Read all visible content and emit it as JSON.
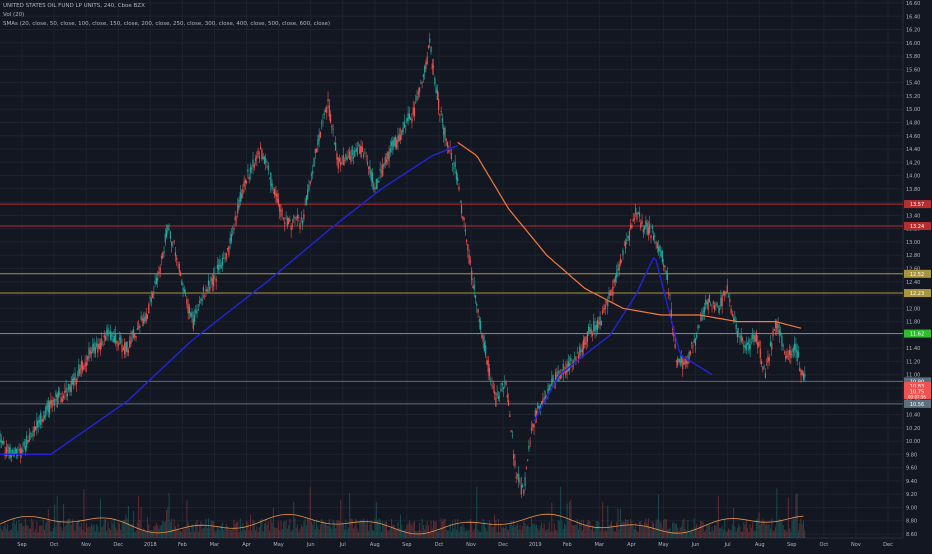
{
  "legend": {
    "title_line": "UNITED STATES OIL FUND LP UNITS, 240, Cboe BZX",
    "volume_line": "Vol (20)",
    "sma_line": "SMAs (20, close, 50, close, 100, close, 150, close, 200, close, 250, close, 300, close, 400, close, 500, close, 600, close)"
  },
  "colors": {
    "background": "#131722",
    "grid": "#1e222d",
    "candle_up": "#26a69a",
    "candle_down": "#ef5350",
    "sma_blue": "#2424d6",
    "sma_orange": "#f57c3a",
    "volume_ma": "#e8954d",
    "line_red": "#b72d2d",
    "line_yellow": "#a8953c",
    "line_green": "#2fbd2f",
    "line_grey": "#5c7080"
  },
  "chart_data": {
    "type": "candlestick",
    "title": "UNITED STATES OIL FUND LP UNITS, 240, Cboe BZX",
    "y_ticks": [
      "16.60",
      "16.40",
      "16.20",
      "16.00",
      "15.80",
      "15.60",
      "15.40",
      "15.20",
      "15.00",
      "14.80",
      "14.60",
      "14.40",
      "14.20",
      "14.00",
      "13.80",
      "13.60",
      "13.40",
      "13.20",
      "13.00",
      "12.80",
      "12.60",
      "12.40",
      "12.20",
      "12.00",
      "11.80",
      "11.60",
      "11.40",
      "11.20",
      "11.00",
      "10.80",
      "10.60",
      "10.40",
      "10.20",
      "10.00",
      "9.80",
      "9.60",
      "9.40",
      "9.20",
      "9.00",
      "8.80",
      "8.60"
    ],
    "ylim": [
      8.6,
      16.6
    ],
    "x_ticks": [
      "Sep",
      "Oct",
      "Nov",
      "Dec",
      "2018",
      "Feb",
      "Mar",
      "Apr",
      "May",
      "Jun",
      "Jul",
      "Aug",
      "Sep",
      "Oct",
      "Nov",
      "Dec",
      "2019",
      "Feb",
      "Mar",
      "Apr",
      "May",
      "Jun",
      "Jul",
      "Aug",
      "Sep",
      "Oct",
      "Nov",
      "Dec"
    ],
    "price_anchors": [
      {
        "d": 0,
        "p": 10.0
      },
      {
        "d": 10,
        "p": 9.75
      },
      {
        "d": 18,
        "p": 9.85
      },
      {
        "d": 25,
        "p": 10.1
      },
      {
        "d": 40,
        "p": 10.55
      },
      {
        "d": 55,
        "p": 10.8
      },
      {
        "d": 70,
        "p": 11.3
      },
      {
        "d": 85,
        "p": 11.6
      },
      {
        "d": 100,
        "p": 11.4
      },
      {
        "d": 115,
        "p": 11.9
      },
      {
        "d": 125,
        "p": 12.5
      },
      {
        "d": 132,
        "p": 13.2
      },
      {
        "d": 138,
        "p": 12.9
      },
      {
        "d": 145,
        "p": 12.2
      },
      {
        "d": 152,
        "p": 11.8
      },
      {
        "d": 160,
        "p": 12.2
      },
      {
        "d": 170,
        "p": 12.5
      },
      {
        "d": 180,
        "p": 12.9
      },
      {
        "d": 192,
        "p": 13.9
      },
      {
        "d": 205,
        "p": 14.4
      },
      {
        "d": 215,
        "p": 13.8
      },
      {
        "d": 225,
        "p": 13.3
      },
      {
        "d": 238,
        "p": 13.3
      },
      {
        "d": 250,
        "p": 14.5
      },
      {
        "d": 258,
        "p": 15.1
      },
      {
        "d": 266,
        "p": 14.2
      },
      {
        "d": 275,
        "p": 14.3
      },
      {
        "d": 285,
        "p": 14.4
      },
      {
        "d": 295,
        "p": 13.8
      },
      {
        "d": 305,
        "p": 14.3
      },
      {
        "d": 318,
        "p": 14.7
      },
      {
        "d": 326,
        "p": 15.0
      },
      {
        "d": 334,
        "p": 15.6
      },
      {
        "d": 338,
        "p": 16.0
      },
      {
        "d": 343,
        "p": 15.3
      },
      {
        "d": 350,
        "p": 14.6
      },
      {
        "d": 358,
        "p": 14.1
      },
      {
        "d": 365,
        "p": 13.3
      },
      {
        "d": 372,
        "p": 12.4
      },
      {
        "d": 380,
        "p": 11.5
      },
      {
        "d": 390,
        "p": 10.6
      },
      {
        "d": 398,
        "p": 10.9
      },
      {
        "d": 406,
        "p": 9.5
      },
      {
        "d": 412,
        "p": 9.2
      },
      {
        "d": 418,
        "p": 10.2
      },
      {
        "d": 428,
        "p": 10.7
      },
      {
        "d": 440,
        "p": 11.0
      },
      {
        "d": 452,
        "p": 11.2
      },
      {
        "d": 462,
        "p": 11.6
      },
      {
        "d": 472,
        "p": 11.8
      },
      {
        "d": 482,
        "p": 12.3
      },
      {
        "d": 492,
        "p": 13.0
      },
      {
        "d": 500,
        "p": 13.4
      },
      {
        "d": 508,
        "p": 13.2
      },
      {
        "d": 515,
        "p": 13.1
      },
      {
        "d": 525,
        "p": 12.5
      },
      {
        "d": 532,
        "p": 11.2
      },
      {
        "d": 540,
        "p": 11.2
      },
      {
        "d": 548,
        "p": 11.6
      },
      {
        "d": 556,
        "p": 12.1
      },
      {
        "d": 565,
        "p": 12.0
      },
      {
        "d": 572,
        "p": 12.3
      },
      {
        "d": 580,
        "p": 11.6
      },
      {
        "d": 588,
        "p": 11.4
      },
      {
        "d": 595,
        "p": 11.6
      },
      {
        "d": 602,
        "p": 11.0
      },
      {
        "d": 610,
        "p": 11.8
      },
      {
        "d": 618,
        "p": 11.3
      },
      {
        "d": 625,
        "p": 11.4
      },
      {
        "d": 633,
        "p": 10.9
      }
    ],
    "sma_blue": [
      {
        "d": 0,
        "p": 9.8
      },
      {
        "d": 40,
        "p": 9.8
      },
      {
        "d": 100,
        "p": 10.6
      },
      {
        "d": 150,
        "p": 11.5
      },
      {
        "d": 210,
        "p": 12.4
      },
      {
        "d": 260,
        "p": 13.2
      },
      {
        "d": 300,
        "p": 13.8
      },
      {
        "d": 340,
        "p": 14.3
      },
      {
        "d": 360,
        "p": 14.45
      }
    ],
    "sma_blue_2": [
      {
        "d": 420,
        "p": 10.3
      },
      {
        "d": 440,
        "p": 11.0
      },
      {
        "d": 460,
        "p": 11.3
      },
      {
        "d": 480,
        "p": 11.6
      },
      {
        "d": 500,
        "p": 12.2
      },
      {
        "d": 515,
        "p": 12.8
      },
      {
        "d": 535,
        "p": 11.3
      },
      {
        "d": 560,
        "p": 11.0
      }
    ],
    "sma_orange": [
      {
        "d": 360,
        "p": 14.5
      },
      {
        "d": 375,
        "p": 14.3
      },
      {
        "d": 400,
        "p": 13.5
      },
      {
        "d": 430,
        "p": 12.8
      },
      {
        "d": 460,
        "p": 12.3
      },
      {
        "d": 490,
        "p": 12.0
      },
      {
        "d": 520,
        "p": 11.9
      },
      {
        "d": 550,
        "p": 11.9
      },
      {
        "d": 580,
        "p": 11.8
      },
      {
        "d": 610,
        "p": 11.8
      },
      {
        "d": 630,
        "p": 11.7
      }
    ],
    "h_lines": [
      {
        "p": 13.57,
        "label": "13.57",
        "color_key": "line_red"
      },
      {
        "p": 13.24,
        "label": "13.24",
        "color_key": "line_red"
      },
      {
        "p": 12.52,
        "label": "12.52",
        "color_key": "line_yellow"
      },
      {
        "p": 12.23,
        "label": "12.23",
        "color_key": "line_yellow"
      },
      {
        "p": 11.62,
        "label": "11.62",
        "color_key": "line_green"
      },
      {
        "p": 10.9,
        "label": "10.90",
        "color_key": "line_grey"
      },
      {
        "p": 10.56,
        "label": "10.56",
        "color_key": "line_grey"
      }
    ],
    "price_tag": {
      "p": 10.75,
      "label": "10.75",
      "sub": "00:07:56"
    },
    "price_tag_2": {
      "p": 10.83,
      "label": "10.83"
    }
  }
}
